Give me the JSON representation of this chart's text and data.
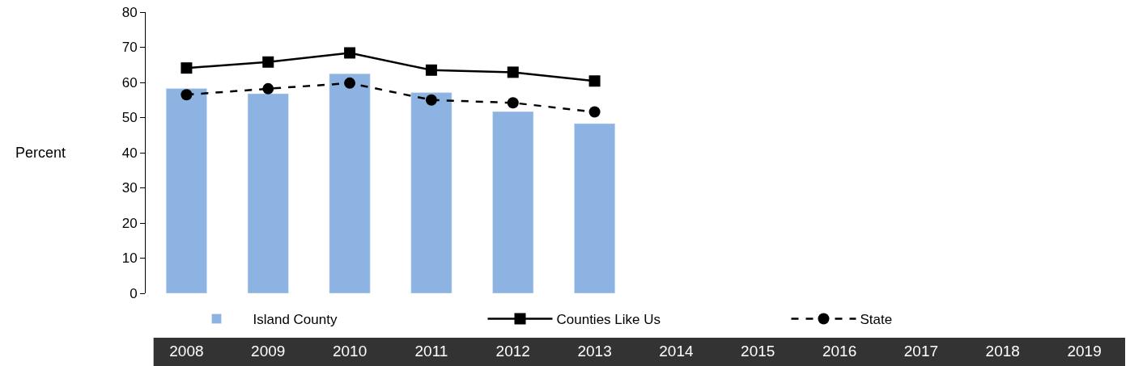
{
  "chart_data": {
    "type": "bar",
    "annotations": [
      "Percent"
    ],
    "categories": [
      "2008",
      "2009",
      "2010",
      "2011",
      "2012",
      "2013",
      "2014",
      "2015",
      "2016",
      "2017",
      "2018",
      "2019"
    ],
    "series": [
      {
        "name": "Island County",
        "color": "#8db3e2",
        "values": [
          58.3,
          56.8,
          62.5,
          57.1,
          51.7,
          48.3,
          null,
          null,
          null,
          null,
          null,
          null
        ]
      },
      {
        "name": "Counties Like Us",
        "type": "line",
        "color": "#000000",
        "marker": "square",
        "line_style": "solid",
        "values": [
          64.1,
          65.8,
          68.4,
          63.5,
          62.9,
          60.4,
          null,
          null,
          null,
          null,
          null,
          null
        ]
      },
      {
        "name": "State",
        "type": "line",
        "color": "#000000",
        "marker": "circle",
        "line_style": "dashed",
        "values": [
          56.5,
          58.2,
          59.8,
          55.0,
          54.2,
          51.6,
          null,
          null,
          null,
          null,
          null,
          null
        ]
      }
    ],
    "ylim": [
      0,
      80
    ],
    "yticks": [
      0,
      10,
      20,
      30,
      40,
      50,
      60,
      70,
      80
    ],
    "grid": false,
    "legend": "bottom"
  }
}
